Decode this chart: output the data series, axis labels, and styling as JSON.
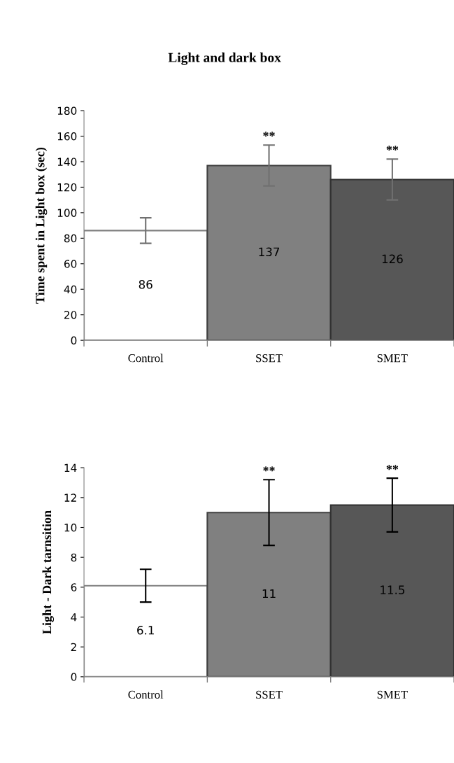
{
  "chart_data": [
    {
      "type": "bar",
      "title": "Light and dark box",
      "ylabel": "Time spent in Light box (sec)",
      "categories": [
        "Control",
        "SSET",
        "SMET"
      ],
      "values": [
        86,
        137,
        126
      ],
      "colors": [
        "#ffffff",
        "#808080",
        "#575757"
      ],
      "errors": [
        10,
        16,
        16
      ],
      "ylim": [
        0,
        180
      ],
      "yticks": [
        0,
        20,
        40,
        60,
        80,
        100,
        120,
        140,
        160,
        180
      ],
      "data_labels": true,
      "grid": false,
      "legend": false,
      "annotations": [
        "**",
        "**"
      ]
    },
    {
      "type": "bar",
      "ylabel": "Light - Dark tarnsition",
      "categories": [
        "Control",
        "SSET",
        "SMET"
      ],
      "values": [
        6.1,
        11,
        11.5
      ],
      "colors": [
        "#ffffff",
        "#808080",
        "#575757"
      ],
      "errors": [
        1.1,
        2.2,
        1.8
      ],
      "ylim": [
        0,
        14
      ],
      "yticks": [
        0,
        2,
        4,
        6,
        8,
        10,
        12,
        14
      ],
      "data_labels": true,
      "grid": false,
      "legend": false,
      "annotations": [
        "**",
        "**"
      ]
    }
  ]
}
